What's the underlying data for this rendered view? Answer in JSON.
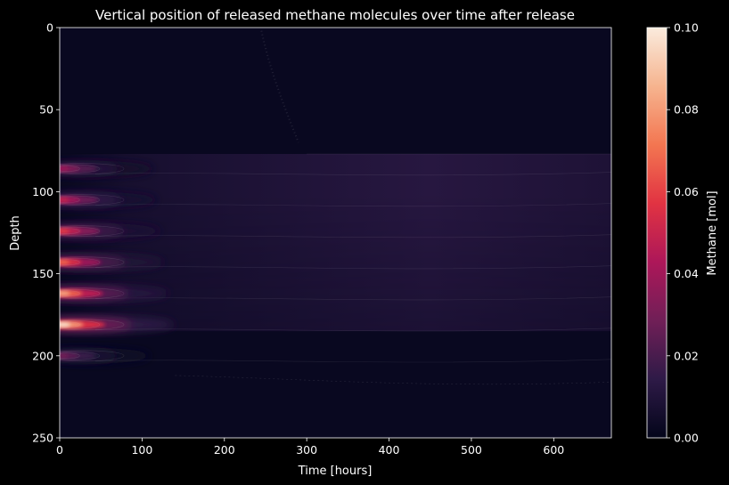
{
  "chart_data": {
    "type": "heatmap",
    "title": "Vertical position of released methane molecules over time after release",
    "xlabel": "Time [hours]",
    "ylabel": "Depth",
    "xlim": [
      0,
      670
    ],
    "ylim": [
      250,
      0
    ],
    "y_axis_inverted": true,
    "x_ticks": [
      0,
      100,
      200,
      300,
      400,
      500,
      600
    ],
    "y_ticks": [
      0,
      50,
      100,
      150,
      200,
      250
    ],
    "colorbar": {
      "label": "Methane [mol]",
      "min": 0.0,
      "max": 0.1,
      "ticks": [
        "0.00",
        "0.02",
        "0.04",
        "0.06",
        "0.08",
        "0.10"
      ],
      "colormap": "rocket",
      "colors": [
        "#03051a",
        "#2e1a47",
        "#701f57",
        "#ad1759",
        "#e13342",
        "#f37651",
        "#f6b48f",
        "#faebdd"
      ]
    },
    "background_value": 0.002,
    "release_sources": [
      {
        "depth": 86,
        "peak_value": 0.04
      },
      {
        "depth": 105,
        "peak_value": 0.05
      },
      {
        "depth": 124,
        "peak_value": 0.06
      },
      {
        "depth": 143,
        "peak_value": 0.07
      },
      {
        "depth": 162,
        "peak_value": 0.085
      },
      {
        "depth": 181,
        "peak_value": 0.1
      },
      {
        "depth": 200,
        "peak_value": 0.03
      }
    ],
    "diffuse_layer": {
      "top_depth": 77,
      "bottom_depth": 185,
      "start_time": 0,
      "peak_time": 450,
      "peak_value": 0.012
    },
    "background": "black",
    "grid": false
  }
}
